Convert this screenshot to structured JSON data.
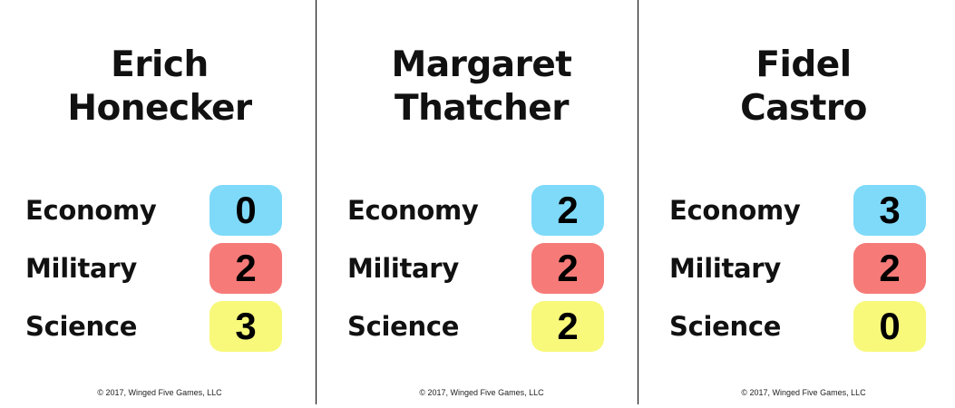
{
  "colors": {
    "economy": "#7fdaf9",
    "military": "#f67b78",
    "science": "#f8f97b"
  },
  "cards": [
    {
      "name_line1": "Erich",
      "name_line2": "Honecker",
      "stats": [
        {
          "label": "Economy",
          "value": "0"
        },
        {
          "label": "Military",
          "value": "2"
        },
        {
          "label": "Science",
          "value": "3"
        }
      ],
      "copyright": "© 2017, Winged Five Games, LLC"
    },
    {
      "name_line1": "Margaret",
      "name_line2": "Thatcher",
      "stats": [
        {
          "label": "Economy",
          "value": "2"
        },
        {
          "label": "Military",
          "value": "2"
        },
        {
          "label": "Science",
          "value": "2"
        }
      ],
      "copyright": "© 2017, Winged Five Games, LLC"
    },
    {
      "name_line1": "Fidel",
      "name_line2": "Castro",
      "stats": [
        {
          "label": "Economy",
          "value": "3"
        },
        {
          "label": "Military",
          "value": "2"
        },
        {
          "label": "Science",
          "value": "0"
        }
      ],
      "copyright": "© 2017, Winged Five Games, LLC"
    }
  ]
}
